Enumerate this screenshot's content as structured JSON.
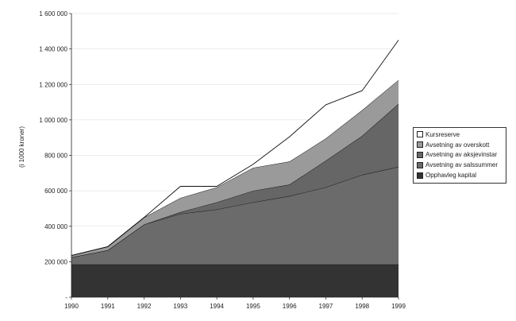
{
  "chart_data": {
    "type": "area",
    "stacked": true,
    "ylabel": "(i 1000 kroner)",
    "x": [
      "1990",
      "1991",
      "1992",
      "1993",
      "1994",
      "1995",
      "1996",
      "1997",
      "1998",
      "1999"
    ],
    "ylim": [
      0,
      1600000
    ],
    "yticks": [
      {
        "value": 0,
        "label": "-"
      },
      {
        "value": 200000,
        "label": "200 000"
      },
      {
        "value": 400000,
        "label": "400 000"
      },
      {
        "value": 600000,
        "label": "600 000"
      },
      {
        "value": 800000,
        "label": "800 000"
      },
      {
        "value": 1000000,
        "label": "1 000 000"
      },
      {
        "value": 1200000,
        "label": "1 200 000"
      },
      {
        "value": 1400000,
        "label": "1 400 000"
      },
      {
        "value": 1600000,
        "label": "1 600 000"
      }
    ],
    "grid": "horizontal",
    "legend_position": "right",
    "series": [
      {
        "name": "Opphavleg kapital",
        "color": "#333333",
        "values": [
          185000,
          185000,
          185000,
          185000,
          185000,
          185000,
          185000,
          185000,
          185000,
          185000
        ]
      },
      {
        "name": "Avsetning av salssummer",
        "color": "#6b6b6b",
        "values": [
          40000,
          80000,
          225000,
          285000,
          310000,
          350000,
          385000,
          435000,
          505000,
          550000
        ]
      },
      {
        "name": "Avsetning av aksjevinstar",
        "color": "#666666",
        "values": [
          0,
          0,
          0,
          10000,
          40000,
          65000,
          65000,
          150000,
          220000,
          355000
        ]
      },
      {
        "name": "Avsetning av overskott",
        "color": "#9a9a9a",
        "values": [
          10000,
          20000,
          40000,
          80000,
          85000,
          130000,
          130000,
          125000,
          145000,
          135000
        ]
      },
      {
        "name": "Kursreserve",
        "color": "#ffffff",
        "values": [
          0,
          0,
          0,
          65000,
          5000,
          20000,
          140000,
          190000,
          110000,
          225000
        ]
      }
    ]
  }
}
